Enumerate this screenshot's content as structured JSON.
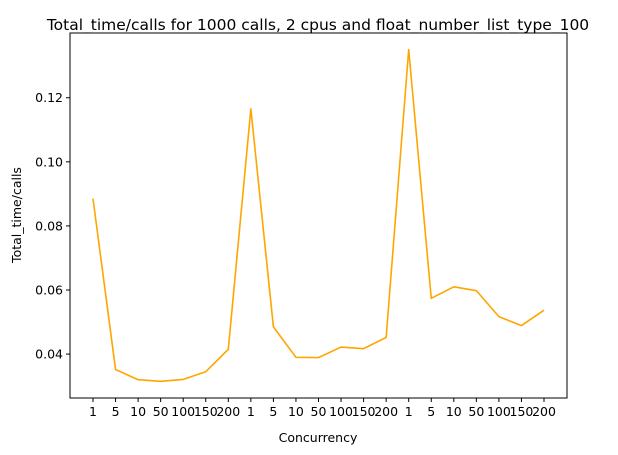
{
  "chart_data": {
    "type": "line",
    "title": "Total_time/calls for 1000 calls, 2 cpus and float_number_list_type_100",
    "xlabel": "Concurrency",
    "ylabel": "Total_time/calls",
    "categories": [
      "1",
      "5",
      "10",
      "50",
      "100",
      "150",
      "200",
      "1",
      "5",
      "10",
      "50",
      "100",
      "150",
      "200",
      "1",
      "5",
      "10",
      "50",
      "100",
      "150",
      "200"
    ],
    "series": [
      {
        "color": "#ffa500",
        "values": [
          0.0885,
          0.0352,
          0.032,
          0.0315,
          0.0321,
          0.0345,
          0.0415,
          0.1165,
          0.0485,
          0.039,
          0.0389,
          0.0422,
          0.0417,
          0.0452,
          0.135,
          0.0574,
          0.061,
          0.0598,
          0.0517,
          0.0489,
          0.0537
        ]
      }
    ],
    "yticks": [
      0.04,
      0.06,
      0.08,
      0.1,
      0.12
    ],
    "ytick_labels": [
      "0.04",
      "0.06",
      "0.08",
      "0.10",
      "0.12"
    ],
    "ylim": [
      0.0263,
      0.1402
    ],
    "grid": false,
    "legend": "none"
  }
}
